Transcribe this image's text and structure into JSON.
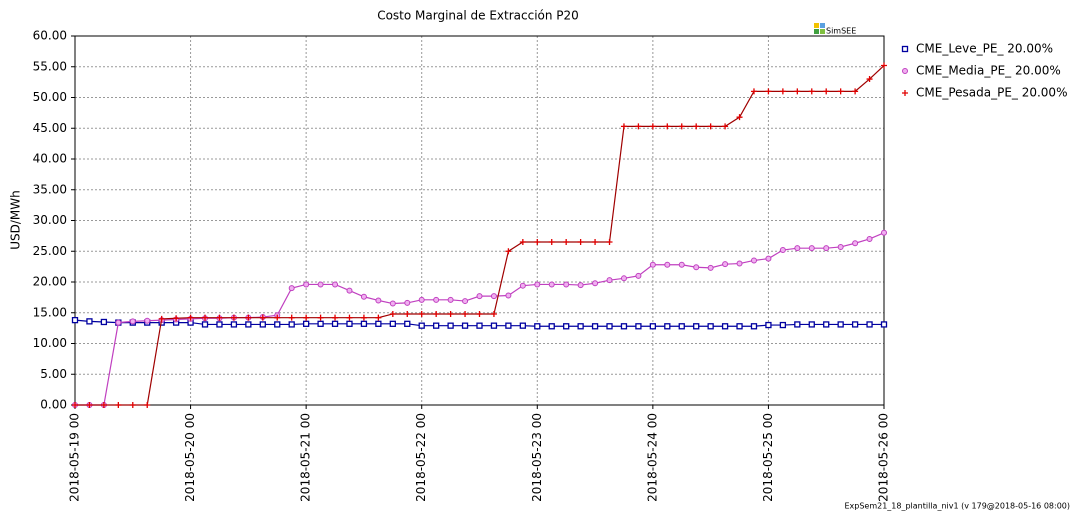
{
  "chart_data": {
    "type": "line",
    "title": "Costo Marginal de Extracción P20",
    "ylabel": "USD/MWh",
    "watermark": "SimSEE",
    "footer": "ExpSem21_18_plantilla_niv1 (v 179@2018-05-16 08:00)",
    "legend": "right",
    "grid": true,
    "x": [
      0,
      0.125,
      0.25,
      0.375,
      0.5,
      0.625,
      0.75,
      0.875,
      1,
      1.125,
      1.25,
      1.375,
      1.5,
      1.625,
      1.75,
      1.875,
      2,
      2.125,
      2.25,
      2.375,
      2.5,
      2.625,
      2.75,
      2.875,
      3,
      3.125,
      3.25,
      3.375,
      3.5,
      3.625,
      3.75,
      3.875,
      4,
      4.125,
      4.25,
      4.375,
      4.5,
      4.625,
      4.75,
      4.875,
      5,
      5.125,
      5.25,
      5.375,
      5.5,
      5.625,
      5.75,
      5.875,
      6,
      6.125,
      6.25,
      6.375,
      6.5,
      6.625,
      6.75,
      6.875,
      7
    ],
    "xlim": [
      0,
      7
    ],
    "xticks": [
      {
        "value": 0,
        "label": "2018-05-19 00"
      },
      {
        "value": 1,
        "label": "2018-05-20 00"
      },
      {
        "value": 2,
        "label": "2018-05-21 00"
      },
      {
        "value": 3,
        "label": "2018-05-22 00"
      },
      {
        "value": 4,
        "label": "2018-05-23 00"
      },
      {
        "value": 5,
        "label": "2018-05-24 00"
      },
      {
        "value": 6,
        "label": "2018-05-25 00"
      },
      {
        "value": 7,
        "label": "2018-05-26 00"
      }
    ],
    "ylim": [
      0,
      60
    ],
    "yticks": [
      {
        "value": 0,
        "label": "0.00"
      },
      {
        "value": 5,
        "label": "5.00"
      },
      {
        "value": 10,
        "label": "10.00"
      },
      {
        "value": 15,
        "label": "15.00"
      },
      {
        "value": 20,
        "label": "20.00"
      },
      {
        "value": 25,
        "label": "25.00"
      },
      {
        "value": 30,
        "label": "30.00"
      },
      {
        "value": 35,
        "label": "35.00"
      },
      {
        "value": 40,
        "label": "40.00"
      },
      {
        "value": 45,
        "label": "45.00"
      },
      {
        "value": 50,
        "label": "50.00"
      },
      {
        "value": 55,
        "label": "55.00"
      },
      {
        "value": 60,
        "label": "60.00"
      }
    ],
    "series": [
      {
        "name": "CME_Leve_PE_ 20.00%",
        "color": "#0000a0",
        "marker": "square",
        "values": [
          13.8,
          13.6,
          13.5,
          13.4,
          13.4,
          13.4,
          13.4,
          13.4,
          13.4,
          13.1,
          13.1,
          13.1,
          13.1,
          13.1,
          13.1,
          13.1,
          13.2,
          13.2,
          13.2,
          13.2,
          13.2,
          13.2,
          13.2,
          13.2,
          12.9,
          12.9,
          12.9,
          12.9,
          12.9,
          12.9,
          12.9,
          12.9,
          12.8,
          12.8,
          12.8,
          12.8,
          12.8,
          12.8,
          12.8,
          12.8,
          12.8,
          12.8,
          12.8,
          12.8,
          12.8,
          12.8,
          12.8,
          12.8,
          13.0,
          13.0,
          13.1,
          13.1,
          13.1,
          13.1,
          13.1,
          13.1,
          13.1
        ]
      },
      {
        "name": "CME_Media_PE_ 20.00%",
        "color": "#c040c0",
        "marker": "circle",
        "values": [
          0,
          0,
          0,
          13.4,
          13.6,
          13.7,
          13.8,
          13.9,
          14.0,
          14.1,
          14.1,
          14.2,
          14.2,
          14.3,
          14.6,
          19.0,
          19.6,
          19.6,
          19.6,
          18.6,
          17.6,
          17.0,
          16.5,
          16.6,
          17.1,
          17.1,
          17.1,
          16.9,
          17.7,
          17.7,
          17.8,
          19.4,
          19.6,
          19.6,
          19.6,
          19.5,
          19.8,
          20.3,
          20.6,
          21.0,
          22.8,
          22.8,
          22.8,
          22.4,
          22.3,
          22.9,
          23.0,
          23.5,
          23.8,
          25.2,
          25.5,
          25.5,
          25.5,
          25.7,
          26.3,
          27.0,
          28.0
        ]
      },
      {
        "name": "CME_Pesada_PE_ 20.00%",
        "color": "#a00000",
        "marker": "plus",
        "values": [
          0,
          0,
          0,
          0,
          0,
          0,
          14.0,
          14.1,
          14.2,
          14.2,
          14.2,
          14.2,
          14.2,
          14.2,
          14.2,
          14.2,
          14.2,
          14.2,
          14.2,
          14.2,
          14.2,
          14.2,
          14.8,
          14.8,
          14.8,
          14.8,
          14.8,
          14.8,
          14.8,
          14.8,
          25.0,
          26.5,
          26.5,
          26.5,
          26.5,
          26.5,
          26.5,
          26.5,
          45.3,
          45.3,
          45.3,
          45.3,
          45.3,
          45.3,
          45.3,
          45.3,
          46.8,
          51.0,
          51.0,
          51.0,
          51.0,
          51.0,
          51.0,
          51.0,
          51.0,
          53.0,
          55.2
        ]
      }
    ]
  }
}
